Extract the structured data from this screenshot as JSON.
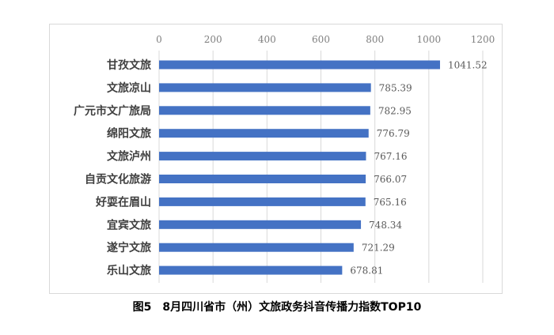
{
  "chart_data": {
    "type": "bar",
    "orientation": "horizontal",
    "categories": [
      "甘孜文旅",
      "文旅凉山",
      "广元市文广旅局",
      "绵阳文旅",
      "文旅泸州",
      "自贡文化旅游",
      "好耍在眉山",
      "宜宾文旅",
      "遂宁文旅",
      "乐山文旅"
    ],
    "values": [
      1041.52,
      785.39,
      782.95,
      776.79,
      767.16,
      766.07,
      765.16,
      748.34,
      721.29,
      678.81
    ],
    "value_labels": [
      "1041.52",
      "785.39",
      "782.95",
      "776.79",
      "767.16",
      "766.07",
      "765.16",
      "748.34",
      "721.29",
      "678.81"
    ],
    "xlim": [
      0,
      1200
    ],
    "x_ticks": [
      0,
      200,
      400,
      600,
      800,
      1000,
      1200
    ],
    "x_tick_labels": [
      "0",
      "200",
      "400",
      "600",
      "800",
      "1000",
      "1200"
    ],
    "x_axis_position": "top",
    "grid": true,
    "legend": "none",
    "bar_color": "#4472c4",
    "caption": "图5　8月四川省市（州）文旅政务抖音传播力指数TOP10"
  }
}
